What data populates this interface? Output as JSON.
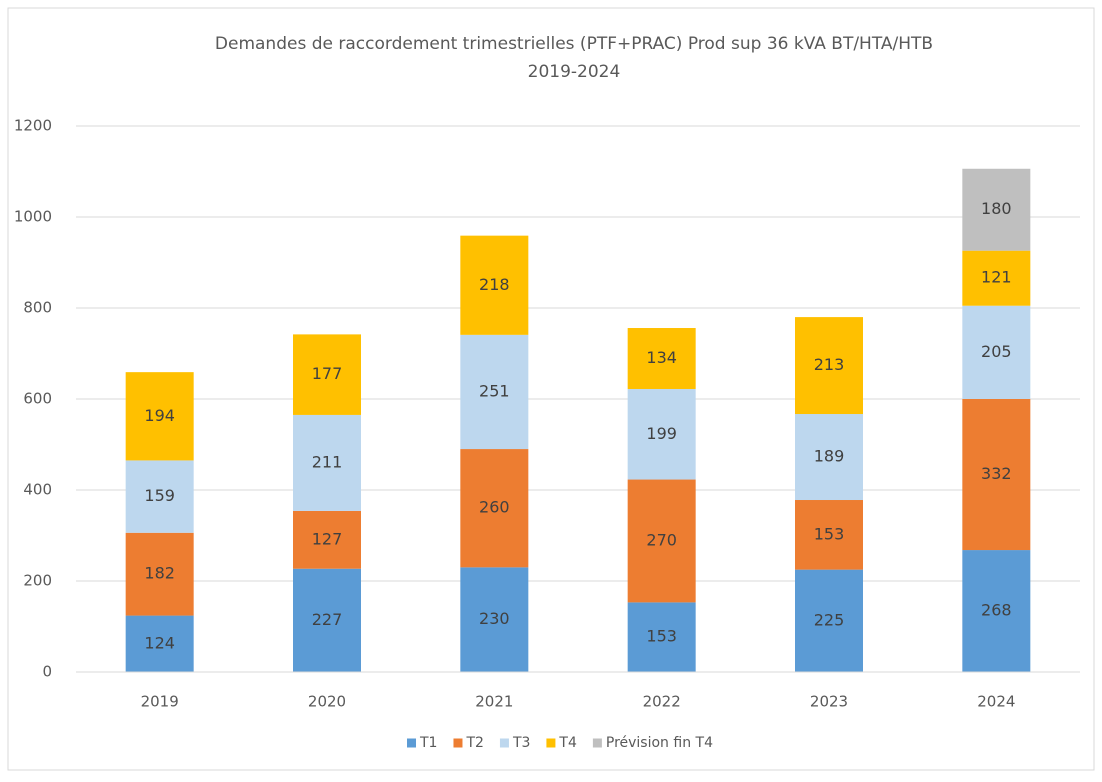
{
  "chart_data": {
    "type": "stacked_bar",
    "title": "Demandes de raccordement trimestrielles (PTF+PRAC) Prod sup 36 kVA BT/HTA/HTB",
    "subtitle": "2019-2024",
    "categories": [
      "2019",
      "2020",
      "2021",
      "2022",
      "2023",
      "2024"
    ],
    "series": [
      {
        "name": "T1",
        "color": "#5b9bd5",
        "values": [
          124,
          227,
          230,
          153,
          225,
          268
        ]
      },
      {
        "name": "T2",
        "color": "#ed7d31",
        "values": [
          182,
          127,
          260,
          270,
          153,
          332
        ]
      },
      {
        "name": "T3",
        "color": "#bdd7ee",
        "values": [
          159,
          211,
          251,
          199,
          189,
          205
        ]
      },
      {
        "name": "T4",
        "color": "#ffc000",
        "values": [
          194,
          177,
          218,
          134,
          213,
          121
        ]
      },
      {
        "name": "Prévision fin T4",
        "color": "#bfbfbf",
        "values": [
          null,
          null,
          null,
          null,
          null,
          180
        ]
      }
    ],
    "ylim": [
      0,
      1200
    ],
    "yticks": [
      0,
      200,
      400,
      600,
      800,
      1000,
      1200
    ],
    "grid": true,
    "legend": "bottom"
  }
}
